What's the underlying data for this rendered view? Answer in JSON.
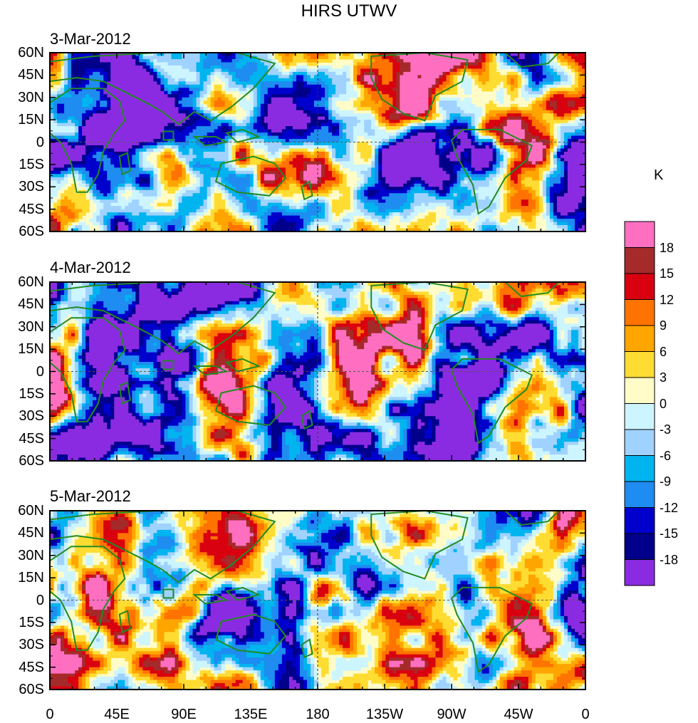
{
  "title": "HIRS UTWV",
  "panels": [
    {
      "date": "3-Mar-2012"
    },
    {
      "date": "4-Mar-2012"
    },
    {
      "date": "5-Mar-2012"
    }
  ],
  "lat_labels": [
    "60N",
    "45N",
    "30N",
    "15N",
    "0",
    "15S",
    "30S",
    "45S",
    "60S"
  ],
  "lon_labels": [
    "0",
    "45E",
    "90E",
    "135E",
    "180",
    "135W",
    "90W",
    "45W",
    "0"
  ],
  "colorbar": {
    "units": "K",
    "labels": [
      "18",
      "15",
      "12",
      "9",
      "6",
      "3",
      "0",
      "-3",
      "-6",
      "-9",
      "-12",
      "-15",
      "-18"
    ],
    "colors": [
      "#ff6fc0",
      "#a52a2a",
      "#d9000f",
      "#ff7300",
      "#ffa500",
      "#ffdc32",
      "#fffcc8",
      "#cdf5ff",
      "#a0d2ff",
      "#00b4f0",
      "#1e8cf0",
      "#0000cd",
      "#00008b",
      "#8a2be2"
    ]
  },
  "palette": {
    "coast": "#228b22",
    "equator": "#555555"
  }
}
